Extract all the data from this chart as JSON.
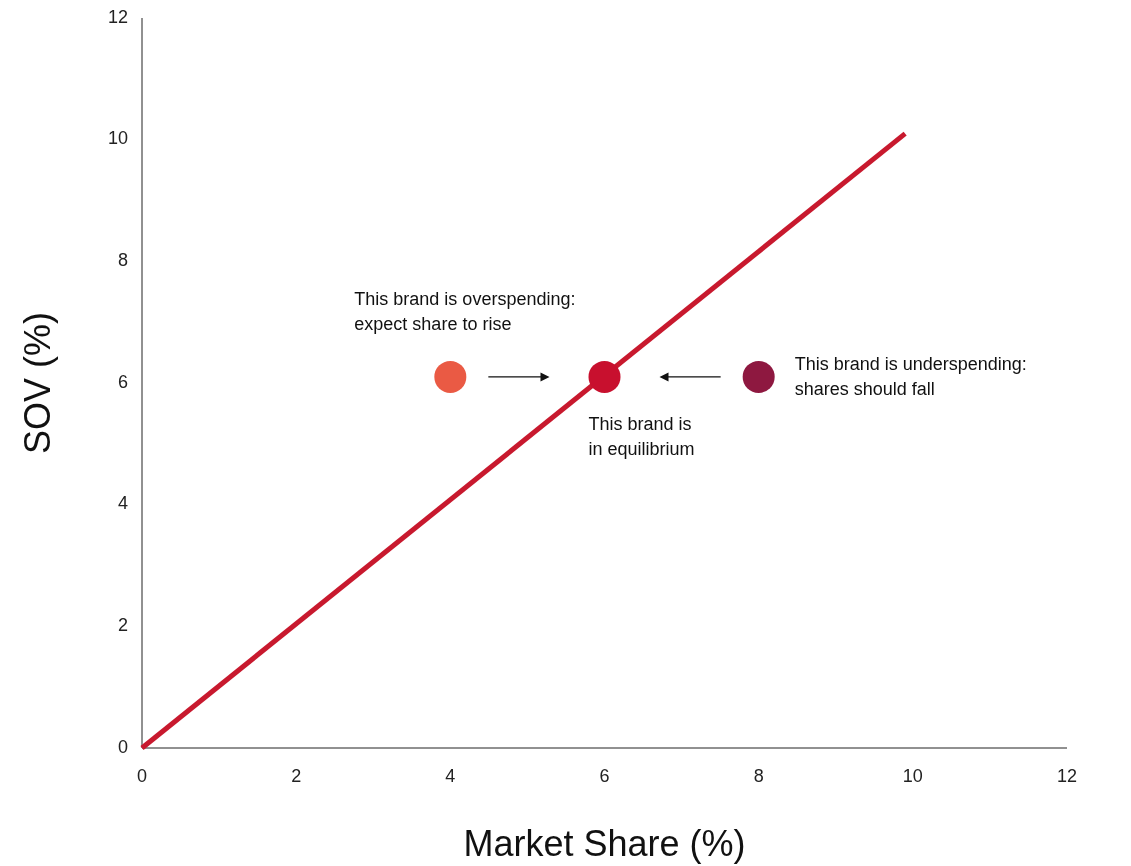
{
  "chart_data": {
    "type": "scatter",
    "xlabel": "Market Share (%)",
    "ylabel": "SOV (%)",
    "xlim": [
      0,
      12
    ],
    "ylim": [
      0,
      12
    ],
    "xticks": [
      0,
      2,
      4,
      6,
      8,
      10,
      12
    ],
    "yticks": [
      0,
      2,
      4,
      6,
      8,
      10,
      12
    ],
    "grid": false,
    "marker": "circle",
    "series": [
      {
        "type": "line",
        "marker": "none",
        "color": "#c8192e",
        "x": [
          0,
          9.9
        ],
        "values": [
          0,
          10.1
        ]
      },
      {
        "colors": [
          "#ea5a44",
          "#c8102e",
          "#8e1840"
        ],
        "x": [
          4,
          6,
          8
        ],
        "values": [
          6.1,
          6.1,
          6.1
        ]
      }
    ],
    "annotations": [
      {
        "text": "This brand is overspending:\nexpect share to rise",
        "x": 4,
        "y": 6.1
      },
      {
        "text": "This brand is\nin equilibrium",
        "x": 6,
        "y": 6.1
      },
      {
        "text": "This brand is underspending:\nshares should fall",
        "x": 8,
        "y": 6.1
      }
    ]
  }
}
